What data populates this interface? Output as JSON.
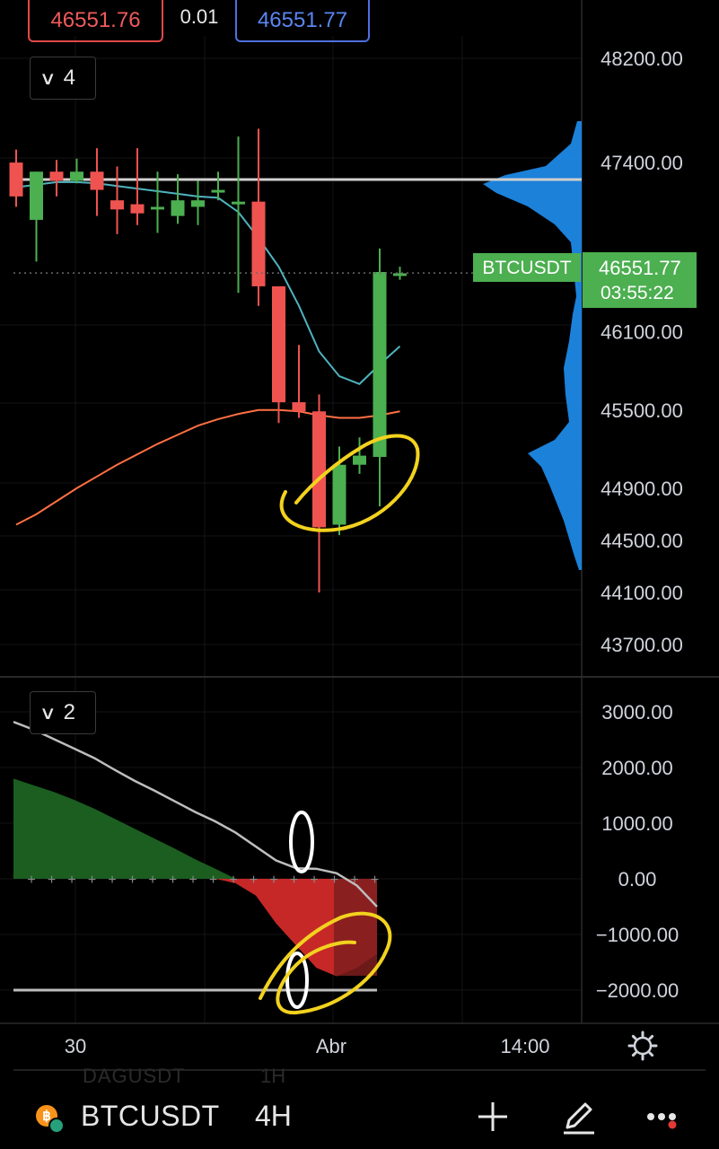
{
  "quote": {
    "bid": "46551.76",
    "spread": "0.01",
    "ask": "46551.77",
    "bid_color": "#e04848",
    "ask_color": "#4f6fe0"
  },
  "main_pane": {
    "collapse_count": "4",
    "y_ticks": [
      "48200.00",
      "47400.00",
      "46100.00",
      "45500.00",
      "44900.00",
      "44500.00",
      "44100.00",
      "43700.00"
    ],
    "symbol_badge": "BTCUSDT",
    "last_price": "46551.77",
    "countdown": "03:55:22",
    "badge_color": "#4caf50"
  },
  "indicator_pane": {
    "collapse_count": "2",
    "y_ticks": [
      "3000.00",
      "2000.00",
      "1000.00",
      "0.00",
      "−1000.00",
      "−2000.00"
    ]
  },
  "time_axis": {
    "labels": [
      "30",
      "Abr",
      "14:00"
    ]
  },
  "bottom_bar": {
    "symbol": "BTCUSDT",
    "interval": "4H",
    "ghost_symbol": "DAGUSDT",
    "ghost_interval": "1H",
    "icons": [
      "bitcoin-icon",
      "plus-icon",
      "pen-icon",
      "more-icon",
      "settings-icon"
    ]
  },
  "chart_data": {
    "type": "candlestick",
    "symbol": "BTCUSDT",
    "interval": "4H",
    "ylim": [
      43600,
      48300
    ],
    "up_color": "#4caf50",
    "down_color": "#ef5350",
    "candles": [
      {
        "o": 47400,
        "h": 47500,
        "l": 47060,
        "c": 47140
      },
      {
        "o": 46960,
        "h": 47330,
        "l": 46640,
        "c": 47330
      },
      {
        "o": 47330,
        "h": 47420,
        "l": 47140,
        "c": 47260
      },
      {
        "o": 47260,
        "h": 47430,
        "l": 47240,
        "c": 47330
      },
      {
        "o": 47330,
        "h": 47510,
        "l": 46990,
        "c": 47190
      },
      {
        "o": 47110,
        "h": 47370,
        "l": 46850,
        "c": 47040
      },
      {
        "o": 47080,
        "h": 47510,
        "l": 46920,
        "c": 47010
      },
      {
        "o": 47040,
        "h": 47330,
        "l": 46860,
        "c": 47060
      },
      {
        "o": 46990,
        "h": 47310,
        "l": 46930,
        "c": 47110
      },
      {
        "o": 47060,
        "h": 47260,
        "l": 46920,
        "c": 47110
      },
      {
        "o": 47190,
        "h": 47330,
        "l": 47110,
        "c": 47190
      },
      {
        "o": 47100,
        "h": 47600,
        "l": 46400,
        "c": 47100
      },
      {
        "o": 47100,
        "h": 47660,
        "l": 46300,
        "c": 46450
      },
      {
        "o": 46450,
        "h": 46450,
        "l": 45400,
        "c": 45560
      },
      {
        "o": 45560,
        "h": 46000,
        "l": 45440,
        "c": 45490
      },
      {
        "o": 45490,
        "h": 45620,
        "l": 44100,
        "c": 44600
      },
      {
        "o": 44620,
        "h": 45220,
        "l": 44540,
        "c": 45080
      },
      {
        "o": 45080,
        "h": 45290,
        "l": 45010,
        "c": 45150
      },
      {
        "o": 45140,
        "h": 46740,
        "l": 44760,
        "c": 46560
      },
      {
        "o": 46540,
        "h": 46600,
        "l": 46500,
        "c": 46550
      }
    ],
    "ema_fast": [
      47210,
      47230,
      47250,
      47250,
      47240,
      47220,
      47200,
      47180,
      47160,
      47140,
      47130,
      47020,
      46820,
      46600,
      46300,
      45950,
      45760,
      45700,
      45850,
      45990
    ],
    "ema_slow_start": 44620,
    "ema_slow": [
      44620,
      44700,
      44800,
      44900,
      44990,
      45080,
      45160,
      45240,
      45310,
      45380,
      45430,
      45470,
      45500,
      45500,
      45490,
      45460,
      45440,
      45440,
      45460,
      45490
    ],
    "horizontal_line": 47270,
    "current_price": 46551.77,
    "volume_profile": "right-side, blue",
    "indicator": {
      "ylim": [
        -2400,
        3300
      ],
      "line": [
        2820,
        2680,
        2510,
        2340,
        2170,
        1960,
        1760,
        1580,
        1390,
        1200,
        1030,
        830,
        580,
        330,
        190,
        180,
        100,
        -120,
        -500
      ],
      "histogram": [
        1800,
        1680,
        1560,
        1420,
        1260,
        1080,
        900,
        720,
        540,
        350,
        180,
        -80,
        -300,
        -800,
        -1200,
        -1600,
        -1750,
        -1600,
        -1350
      ],
      "reference_line": -2000
    },
    "annotations": [
      "yellow circle around lows",
      "white zeros",
      "yellow circle on indicator"
    ]
  }
}
